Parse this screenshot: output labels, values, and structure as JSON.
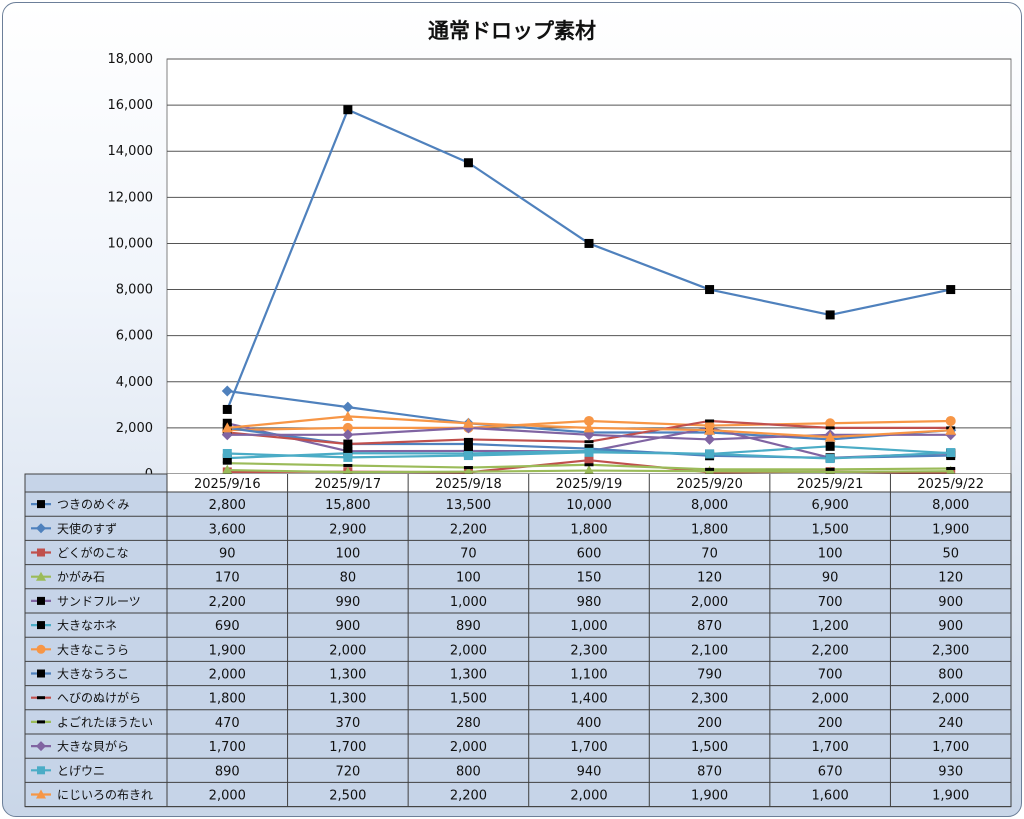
{
  "chart_data": {
    "type": "line",
    "title": "通常ドロップ素材",
    "ylim": [
      0,
      18000
    ],
    "yticks": [
      "0",
      "2,000",
      "4,000",
      "6,000",
      "8,000",
      "10,000",
      "12,000",
      "14,000",
      "16,000",
      "18,000"
    ],
    "ytick_values": [
      0,
      2000,
      4000,
      6000,
      8000,
      10000,
      12000,
      14000,
      16000,
      18000
    ],
    "grid": true,
    "legend": "data-table",
    "categories": [
      "2025/9/16",
      "2025/9/17",
      "2025/9/18",
      "2025/9/19",
      "2025/9/20",
      "2025/9/21",
      "2025/9/22"
    ],
    "series": [
      {
        "name": "つきのめぐみ",
        "color": "#4f81bd",
        "marker": "square",
        "marker_color": "#000000",
        "values": [
          2800,
          15800,
          13500,
          10000,
          8000,
          6900,
          8000
        ],
        "labels": [
          "2,800",
          "15,800",
          "13,500",
          "10,000",
          "8,000",
          "6,900",
          "8,000"
        ]
      },
      {
        "name": "天使のすず",
        "color": "#4f81bd",
        "marker": "diamond",
        "marker_color": "#4f81bd",
        "values": [
          3600,
          2900,
          2200,
          1800,
          1800,
          1500,
          1900
        ],
        "labels": [
          "3,600",
          "2,900",
          "2,200",
          "1,800",
          "1,800",
          "1,500",
          "1,900"
        ]
      },
      {
        "name": "どくがのこな",
        "color": "#c0504d",
        "marker": "square",
        "marker_color": "#c0504d",
        "values": [
          90,
          100,
          70,
          600,
          70,
          100,
          50
        ],
        "labels": [
          "90",
          "100",
          "70",
          "600",
          "70",
          "100",
          "50"
        ]
      },
      {
        "name": "かがみ石",
        "color": "#9bbb59",
        "marker": "triangle",
        "marker_color": "#9bbb59",
        "values": [
          170,
          80,
          100,
          150,
          120,
          90,
          120
        ],
        "labels": [
          "170",
          "80",
          "100",
          "150",
          "120",
          "90",
          "120"
        ]
      },
      {
        "name": "サンドフルーツ",
        "color": "#8064a2",
        "marker": "square",
        "marker_color": "#000000",
        "values": [
          2200,
          990,
          1000,
          980,
          2000,
          700,
          900
        ],
        "labels": [
          "2,200",
          "990",
          "1,000",
          "980",
          "2,000",
          "700",
          "900"
        ]
      },
      {
        "name": "大きなホネ",
        "color": "#4bacc6",
        "marker": "square",
        "marker_color": "#000000",
        "values": [
          690,
          900,
          890,
          1000,
          870,
          1200,
          900
        ],
        "labels": [
          "690",
          "900",
          "890",
          "1,000",
          "870",
          "1,200",
          "900"
        ]
      },
      {
        "name": "大きなこうら",
        "color": "#f79646",
        "marker": "circle",
        "marker_color": "#f79646",
        "values": [
          1900,
          2000,
          2000,
          2300,
          2100,
          2200,
          2300
        ],
        "labels": [
          "1,900",
          "2,000",
          "2,000",
          "2,300",
          "2,100",
          "2,200",
          "2,300"
        ]
      },
      {
        "name": "大きなうろこ",
        "color": "#4f81bd",
        "marker": "square",
        "marker_color": "#000000",
        "values": [
          2000,
          1300,
          1300,
          1100,
          790,
          700,
          800
        ],
        "labels": [
          "2,000",
          "1,300",
          "1,300",
          "1,100",
          "790",
          "700",
          "800"
        ]
      },
      {
        "name": "へびのぬけがら",
        "color": "#c0504d",
        "marker": "dash",
        "marker_color": "#000000",
        "values": [
          1800,
          1300,
          1500,
          1400,
          2300,
          2000,
          2000
        ],
        "labels": [
          "1,800",
          "1,300",
          "1,500",
          "1,400",
          "2,300",
          "2,000",
          "2,000"
        ]
      },
      {
        "name": "よごれたほうたい",
        "color": "#9bbb59",
        "marker": "dash",
        "marker_color": "#000000",
        "values": [
          470,
          370,
          280,
          400,
          200,
          200,
          240
        ],
        "labels": [
          "470",
          "370",
          "280",
          "400",
          "200",
          "200",
          "240"
        ]
      },
      {
        "name": "大きな貝がら",
        "color": "#8064a2",
        "marker": "diamond",
        "marker_color": "#8064a2",
        "values": [
          1700,
          1700,
          2000,
          1700,
          1500,
          1700,
          1700
        ],
        "labels": [
          "1,700",
          "1,700",
          "2,000",
          "1,700",
          "1,500",
          "1,700",
          "1,700"
        ]
      },
      {
        "name": "とげウニ",
        "color": "#4bacc6",
        "marker": "square",
        "marker_color": "#4bacc6",
        "values": [
          890,
          720,
          800,
          940,
          870,
          670,
          930
        ],
        "labels": [
          "890",
          "720",
          "800",
          "940",
          "870",
          "670",
          "930"
        ]
      },
      {
        "name": "にじいろの布きれ",
        "color": "#f79646",
        "marker": "triangle",
        "marker_color": "#f79646",
        "values": [
          2000,
          2500,
          2200,
          2000,
          1900,
          1600,
          1900
        ],
        "labels": [
          "2,000",
          "2,500",
          "2,200",
          "2,000",
          "1,900",
          "1,600",
          "1,900"
        ]
      }
    ]
  }
}
